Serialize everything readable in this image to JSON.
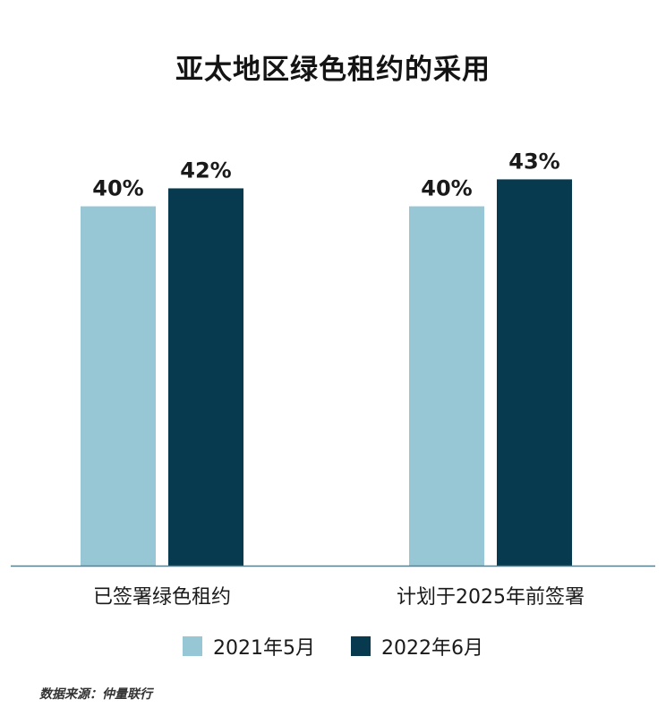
{
  "chart_data": {
    "type": "bar",
    "title": "亚太地区绿色租约的采用",
    "categories": [
      "已签署绿色租约",
      "计划于2025年前签署"
    ],
    "series": [
      {
        "name": "2021年5月",
        "values": [
          40,
          40
        ],
        "color": "#97c7d5"
      },
      {
        "name": "2022年6月",
        "values": [
          42,
          43
        ],
        "color": "#083a4f"
      }
    ],
    "value_labels": [
      [
        "40%",
        "40%"
      ],
      [
        "42%",
        "43%"
      ]
    ],
    "ylim": [
      0,
      54
    ],
    "grid": false,
    "legend_position": "bottom"
  },
  "source": "数据来源：仲量联行",
  "axis_color": "#5a7f8f"
}
